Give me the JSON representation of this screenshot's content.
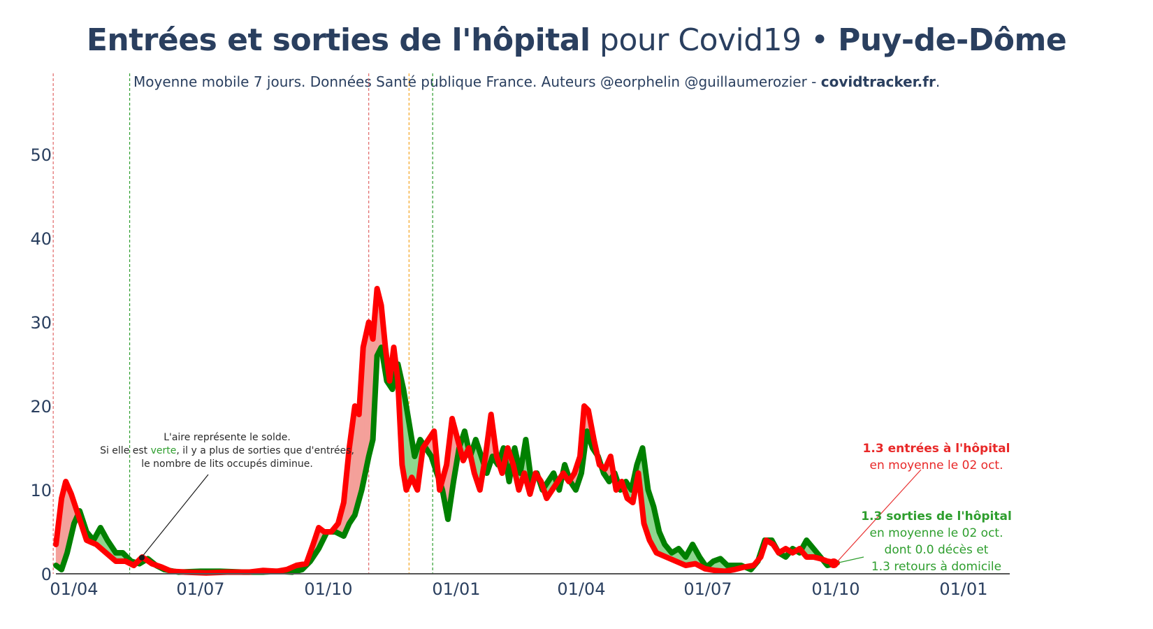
{
  "title": {
    "bold": "Entrées et sorties de l'hôpital",
    "normal": " pour Covid19 • ",
    "region": "Puy-de-Dôme"
  },
  "subtitle": {
    "text": "Moyenne mobile 7 jours. Données Santé publique France. Auteurs @eorphelin @guillaumerozier - ",
    "site": "covidtracker.fr",
    "end": "."
  },
  "annotation_left": {
    "line1": "L'aire représente le solde.",
    "line2_a": "Si elle est ",
    "line2_green": "verte",
    "line2_b": ", il y a plus de sorties que d'entrées,",
    "line3": "le nombre de lits occupés diminue."
  },
  "annotation_entrees": {
    "line1": "1.3 entrées à l'hôpital",
    "line2": "en moyenne le 02 oct."
  },
  "annotation_sorties": {
    "line1": "1.3 sorties de l'hôpital",
    "line2": "en moyenne le 02 oct.",
    "line3": "dont 0.0 décès et",
    "line4": "1.3 retours à domicile"
  },
  "colors": {
    "entrees": "#ff0000",
    "sorties": "#008000",
    "fill_red": "#f4a09a",
    "fill_green": "#8fd58f",
    "text": "#2a3f5f"
  },
  "chart_data": {
    "type": "line",
    "title": "Entrées et sorties de l'hôpital pour Covid19 • Puy-de-Dôme",
    "ylim": [
      0,
      58
    ],
    "yticks": [
      "0",
      "10",
      "20",
      "30",
      "40",
      "50"
    ],
    "xtick_labels": [
      "01/04",
      "01/07",
      "01/10",
      "01/01",
      "01/04",
      "01/07",
      "01/10",
      "01/01"
    ],
    "xtick_dates": [
      "2020-04-01",
      "2020-07-01",
      "2020-10-01",
      "2021-01-01",
      "2021-04-01",
      "2021-07-01",
      "2021-10-01",
      "2022-01-01"
    ],
    "x_start": "2020-03-19",
    "x_end": "2022-01-15",
    "vlines": [
      {
        "date": "2020-03-17",
        "color": "#e06666"
      },
      {
        "date": "2020-05-11",
        "color": "#2e9e2e"
      },
      {
        "date": "2020-10-30",
        "color": "#e06666"
      },
      {
        "date": "2020-11-28",
        "color": "#f5a623"
      },
      {
        "date": "2020-12-15",
        "color": "#2e9e2e"
      }
    ],
    "series": [
      {
        "name": "entrées",
        "color": "#ff0000",
        "points": [
          [
            "2020-03-19",
            3.5
          ],
          [
            "2020-03-23",
            9
          ],
          [
            "2020-03-26",
            11
          ],
          [
            "2020-03-30",
            9.5
          ],
          [
            "2020-04-04",
            7
          ],
          [
            "2020-04-10",
            4
          ],
          [
            "2020-04-17",
            3.5
          ],
          [
            "2020-04-24",
            2.5
          ],
          [
            "2020-05-01",
            1.5
          ],
          [
            "2020-05-08",
            1.5
          ],
          [
            "2020-05-14",
            1
          ],
          [
            "2020-05-20",
            2
          ],
          [
            "2020-05-27",
            1.2
          ],
          [
            "2020-06-03",
            0.8
          ],
          [
            "2020-06-10",
            0.3
          ],
          [
            "2020-06-20",
            0.2
          ],
          [
            "2020-07-05",
            0.1
          ],
          [
            "2020-07-20",
            0.2
          ],
          [
            "2020-08-05",
            0.2
          ],
          [
            "2020-08-15",
            0.4
          ],
          [
            "2020-08-25",
            0.3
          ],
          [
            "2020-09-01",
            0.5
          ],
          [
            "2020-09-08",
            1
          ],
          [
            "2020-09-15",
            1.2
          ],
          [
            "2020-09-20",
            3.5
          ],
          [
            "2020-09-24",
            5.5
          ],
          [
            "2020-09-28",
            5
          ],
          [
            "2020-10-03",
            5
          ],
          [
            "2020-10-08",
            6
          ],
          [
            "2020-10-12",
            8.5
          ],
          [
            "2020-10-16",
            15
          ],
          [
            "2020-10-20",
            20
          ],
          [
            "2020-10-23",
            19
          ],
          [
            "2020-10-26",
            27
          ],
          [
            "2020-10-30",
            30
          ],
          [
            "2020-11-02",
            28
          ],
          [
            "2020-11-05",
            34
          ],
          [
            "2020-11-08",
            32
          ],
          [
            "2020-11-11",
            27
          ],
          [
            "2020-11-14",
            23
          ],
          [
            "2020-11-17",
            27
          ],
          [
            "2020-11-20",
            23
          ],
          [
            "2020-11-23",
            13
          ],
          [
            "2020-11-26",
            10
          ],
          [
            "2020-11-30",
            11.5
          ],
          [
            "2020-12-04",
            10
          ],
          [
            "2020-12-08",
            15
          ],
          [
            "2020-12-12",
            16
          ],
          [
            "2020-12-16",
            17
          ],
          [
            "2020-12-20",
            10
          ],
          [
            "2020-12-25",
            13
          ],
          [
            "2020-12-29",
            18.5
          ],
          [
            "2021-01-02",
            16
          ],
          [
            "2021-01-06",
            13.5
          ],
          [
            "2021-01-10",
            15
          ],
          [
            "2021-01-14",
            12
          ],
          [
            "2021-01-18",
            10
          ],
          [
            "2021-01-22",
            14
          ],
          [
            "2021-01-26",
            19
          ],
          [
            "2021-01-30",
            14
          ],
          [
            "2021-02-03",
            12
          ],
          [
            "2021-02-07",
            15
          ],
          [
            "2021-02-11",
            13
          ],
          [
            "2021-02-15",
            10
          ],
          [
            "2021-02-19",
            12
          ],
          [
            "2021-02-23",
            9.5
          ],
          [
            "2021-02-27",
            12
          ],
          [
            "2021-03-03",
            11
          ],
          [
            "2021-03-07",
            9
          ],
          [
            "2021-03-11",
            10
          ],
          [
            "2021-03-15",
            11
          ],
          [
            "2021-03-19",
            12
          ],
          [
            "2021-03-23",
            11
          ],
          [
            "2021-03-27",
            12
          ],
          [
            "2021-03-31",
            14
          ],
          [
            "2021-04-03",
            20
          ],
          [
            "2021-04-06",
            19.5
          ],
          [
            "2021-04-10",
            16
          ],
          [
            "2021-04-14",
            13
          ],
          [
            "2021-04-18",
            12.5
          ],
          [
            "2021-04-22",
            14
          ],
          [
            "2021-04-26",
            10
          ],
          [
            "2021-04-30",
            11
          ],
          [
            "2021-05-04",
            9
          ],
          [
            "2021-05-08",
            8.5
          ],
          [
            "2021-05-12",
            12
          ],
          [
            "2021-05-16",
            6
          ],
          [
            "2021-05-20",
            4
          ],
          [
            "2021-05-25",
            2.5
          ],
          [
            "2021-06-01",
            2
          ],
          [
            "2021-06-08",
            1.5
          ],
          [
            "2021-06-15",
            1
          ],
          [
            "2021-06-22",
            1.2
          ],
          [
            "2021-06-29",
            0.6
          ],
          [
            "2021-07-06",
            0.4
          ],
          [
            "2021-07-13",
            0.3
          ],
          [
            "2021-07-20",
            0.5
          ],
          [
            "2021-07-27",
            0.8
          ],
          [
            "2021-08-03",
            1
          ],
          [
            "2021-08-08",
            2
          ],
          [
            "2021-08-12",
            4
          ],
          [
            "2021-08-17",
            3.5
          ],
          [
            "2021-08-21",
            2.5
          ],
          [
            "2021-08-26",
            3
          ],
          [
            "2021-08-31",
            2.5
          ],
          [
            "2021-09-05",
            3
          ],
          [
            "2021-09-10",
            2
          ],
          [
            "2021-09-15",
            2
          ],
          [
            "2021-09-20",
            1.8
          ],
          [
            "2021-09-25",
            1.5
          ],
          [
            "2021-10-02",
            1.3
          ]
        ]
      },
      {
        "name": "sorties",
        "color": "#008000",
        "points": [
          [
            "2020-03-19",
            1
          ],
          [
            "2020-03-23",
            0.5
          ],
          [
            "2020-03-27",
            2.5
          ],
          [
            "2020-04-01",
            6
          ],
          [
            "2020-04-05",
            7.5
          ],
          [
            "2020-04-10",
            5
          ],
          [
            "2020-04-15",
            4
          ],
          [
            "2020-04-20",
            5.5
          ],
          [
            "2020-04-25",
            4
          ],
          [
            "2020-05-01",
            2.5
          ],
          [
            "2020-05-06",
            2.5
          ],
          [
            "2020-05-12",
            1.5
          ],
          [
            "2020-05-18",
            1.2
          ],
          [
            "2020-05-24",
            1.8
          ],
          [
            "2020-05-30",
            1
          ],
          [
            "2020-06-05",
            0.5
          ],
          [
            "2020-06-15",
            0.2
          ],
          [
            "2020-07-01",
            0.3
          ],
          [
            "2020-07-15",
            0.3
          ],
          [
            "2020-08-01",
            0.2
          ],
          [
            "2020-08-15",
            0.2
          ],
          [
            "2020-08-25",
            0.3
          ],
          [
            "2020-09-05",
            0.2
          ],
          [
            "2020-09-12",
            0.5
          ],
          [
            "2020-09-18",
            1.5
          ],
          [
            "2020-09-24",
            3
          ],
          [
            "2020-09-30",
            5
          ],
          [
            "2020-10-06",
            5
          ],
          [
            "2020-10-12",
            4.5
          ],
          [
            "2020-10-16",
            6
          ],
          [
            "2020-10-20",
            7
          ],
          [
            "2020-10-25",
            10
          ],
          [
            "2020-10-30",
            14
          ],
          [
            "2020-11-02",
            16
          ],
          [
            "2020-11-05",
            26
          ],
          [
            "2020-11-08",
            27
          ],
          [
            "2020-11-12",
            23
          ],
          [
            "2020-11-16",
            22
          ],
          [
            "2020-11-20",
            25
          ],
          [
            "2020-11-24",
            22
          ],
          [
            "2020-11-28",
            18
          ],
          [
            "2020-12-02",
            14
          ],
          [
            "2020-12-06",
            16
          ],
          [
            "2020-12-10",
            15
          ],
          [
            "2020-12-14",
            14
          ],
          [
            "2020-12-18",
            12
          ],
          [
            "2020-12-22",
            10
          ],
          [
            "2020-12-26",
            6.5
          ],
          [
            "2020-12-30",
            11
          ],
          [
            "2021-01-03",
            15
          ],
          [
            "2021-01-07",
            17
          ],
          [
            "2021-01-11",
            14
          ],
          [
            "2021-01-15",
            16
          ],
          [
            "2021-01-19",
            14
          ],
          [
            "2021-01-23",
            12
          ],
          [
            "2021-01-27",
            14
          ],
          [
            "2021-01-31",
            13
          ],
          [
            "2021-02-04",
            15
          ],
          [
            "2021-02-08",
            11
          ],
          [
            "2021-02-12",
            15
          ],
          [
            "2021-02-16",
            12
          ],
          [
            "2021-02-20",
            16
          ],
          [
            "2021-02-24",
            11
          ],
          [
            "2021-02-28",
            12
          ],
          [
            "2021-03-04",
            10
          ],
          [
            "2021-03-08",
            11
          ],
          [
            "2021-03-12",
            12
          ],
          [
            "2021-03-16",
            10
          ],
          [
            "2021-03-20",
            13
          ],
          [
            "2021-03-24",
            11
          ],
          [
            "2021-03-28",
            10
          ],
          [
            "2021-04-01",
            12
          ],
          [
            "2021-04-05",
            17
          ],
          [
            "2021-04-09",
            15
          ],
          [
            "2021-04-13",
            14
          ],
          [
            "2021-04-17",
            12
          ],
          [
            "2021-04-21",
            11
          ],
          [
            "2021-04-25",
            12
          ],
          [
            "2021-04-29",
            10
          ],
          [
            "2021-05-03",
            11
          ],
          [
            "2021-05-07",
            10
          ],
          [
            "2021-05-11",
            13
          ],
          [
            "2021-05-15",
            15
          ],
          [
            "2021-05-19",
            10
          ],
          [
            "2021-05-23",
            8
          ],
          [
            "2021-05-27",
            5
          ],
          [
            "2021-05-31",
            3.5
          ],
          [
            "2021-06-05",
            2.5
          ],
          [
            "2021-06-10",
            3
          ],
          [
            "2021-06-15",
            2
          ],
          [
            "2021-06-20",
            3.5
          ],
          [
            "2021-06-25",
            2
          ],
          [
            "2021-06-30",
            0.8
          ],
          [
            "2021-07-05",
            1.5
          ],
          [
            "2021-07-10",
            1.8
          ],
          [
            "2021-07-15",
            1
          ],
          [
            "2021-07-25",
            1
          ],
          [
            "2021-08-01",
            0.5
          ],
          [
            "2021-08-06",
            1.5
          ],
          [
            "2021-08-11",
            4
          ],
          [
            "2021-08-16",
            4
          ],
          [
            "2021-08-21",
            2.5
          ],
          [
            "2021-08-26",
            2
          ],
          [
            "2021-08-31",
            3
          ],
          [
            "2021-09-05",
            2.5
          ],
          [
            "2021-09-10",
            4
          ],
          [
            "2021-09-15",
            3
          ],
          [
            "2021-09-20",
            2
          ],
          [
            "2021-09-25",
            1
          ],
          [
            "2021-10-02",
            1.3
          ]
        ]
      }
    ]
  }
}
